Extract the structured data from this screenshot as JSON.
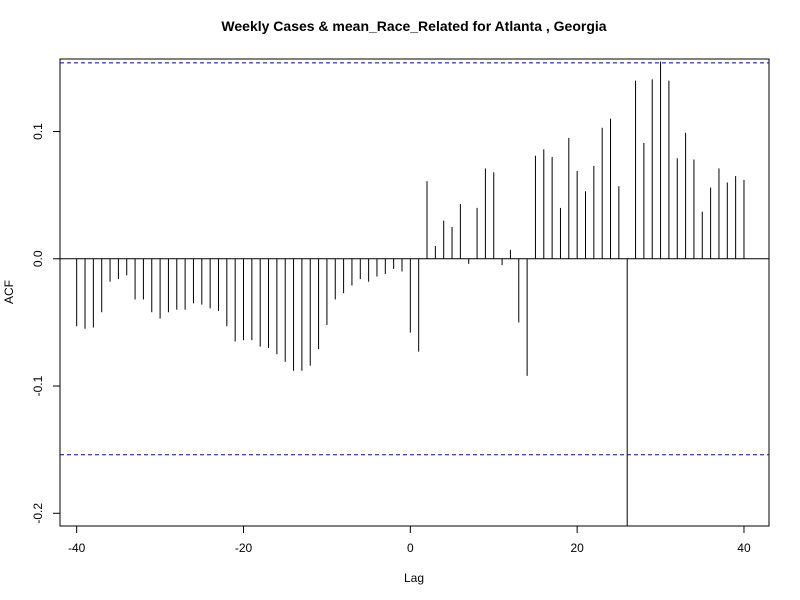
{
  "chart_data": {
    "type": "bar",
    "title": "Weekly Cases & mean_Race_Related for Atlanta , Georgia",
    "xlabel": "Lag",
    "ylabel": "ACF",
    "xlim": [
      -42,
      43
    ],
    "ylim": [
      -0.21,
      0.157
    ],
    "x_ticks": [
      -40,
      -20,
      0,
      20,
      40
    ],
    "y_ticks": [
      -0.2,
      -0.1,
      0.0,
      0.1
    ],
    "y_tick_labels": [
      "-0.2",
      "-0.1",
      "0.0",
      "0.1"
    ],
    "confidence_bounds": [
      0.154,
      -0.154
    ],
    "confidence_color": "#0000cc",
    "bar_color": "#000000",
    "lags": [
      -40,
      -39,
      -38,
      -37,
      -36,
      -35,
      -34,
      -33,
      -32,
      -31,
      -30,
      -29,
      -28,
      -27,
      -26,
      -25,
      -24,
      -23,
      -22,
      -21,
      -20,
      -19,
      -18,
      -17,
      -16,
      -15,
      -14,
      -13,
      -12,
      -11,
      -10,
      -9,
      -8,
      -7,
      -6,
      -5,
      -4,
      -3,
      -2,
      -1,
      0,
      1,
      2,
      3,
      4,
      5,
      6,
      7,
      8,
      9,
      10,
      11,
      12,
      13,
      14,
      15,
      16,
      17,
      18,
      19,
      20,
      21,
      22,
      23,
      24,
      25,
      26,
      27,
      28,
      29,
      30,
      31,
      32,
      33,
      34,
      35,
      36,
      37,
      38,
      39,
      40
    ],
    "values": [
      -0.053,
      -0.055,
      -0.054,
      -0.042,
      -0.018,
      -0.016,
      -0.013,
      -0.032,
      -0.032,
      -0.042,
      -0.047,
      -0.042,
      -0.04,
      -0.04,
      -0.035,
      -0.036,
      -0.039,
      -0.041,
      -0.053,
      -0.065,
      -0.064,
      -0.064,
      -0.069,
      -0.07,
      -0.075,
      -0.081,
      -0.088,
      -0.088,
      -0.084,
      -0.071,
      -0.052,
      -0.032,
      -0.027,
      -0.021,
      -0.016,
      -0.018,
      -0.014,
      -0.012,
      -0.008,
      -0.01,
      -0.058,
      -0.073,
      0.061,
      0.01,
      0.03,
      0.025,
      0.043,
      -0.004,
      0.04,
      0.071,
      0.068,
      -0.005,
      0.007,
      -0.05,
      -0.092,
      0.081,
      0.086,
      0.08,
      0.04,
      0.095,
      0.069,
      0.053,
      0.073,
      0.103,
      0.11,
      0.057,
      -0.21,
      0.14,
      0.091,
      0.141,
      0.155,
      0.14,
      0.079,
      0.099,
      0.078,
      0.037,
      0.056,
      0.071,
      0.06,
      0.065,
      0.062
    ]
  }
}
